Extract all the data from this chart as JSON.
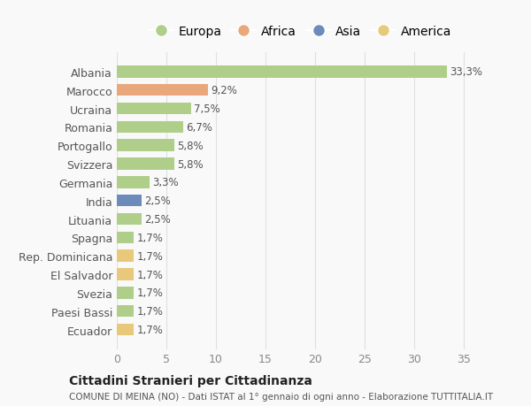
{
  "countries": [
    "Albania",
    "Marocco",
    "Ucraina",
    "Romania",
    "Portogallo",
    "Svizzera",
    "Germania",
    "India",
    "Lituania",
    "Spagna",
    "Rep. Dominicana",
    "El Salvador",
    "Svezia",
    "Paesi Bassi",
    "Ecuador"
  ],
  "values": [
    33.3,
    9.2,
    7.5,
    6.7,
    5.8,
    5.8,
    3.3,
    2.5,
    2.5,
    1.7,
    1.7,
    1.7,
    1.7,
    1.7,
    1.7
  ],
  "labels": [
    "33,3%",
    "9,2%",
    "7,5%",
    "6,7%",
    "5,8%",
    "5,8%",
    "3,3%",
    "2,5%",
    "2,5%",
    "1,7%",
    "1,7%",
    "1,7%",
    "1,7%",
    "1,7%",
    "1,7%"
  ],
  "continent_map": [
    "Europa",
    "Africa",
    "Europa",
    "Europa",
    "Europa",
    "Europa",
    "Europa",
    "Asia",
    "Europa",
    "Europa",
    "America",
    "America",
    "Europa",
    "Europa",
    "America"
  ],
  "continent_colors": {
    "Europa": "#aece8a",
    "Africa": "#e8a87c",
    "Asia": "#6b8cba",
    "America": "#e8c97c"
  },
  "legend_labels": [
    "Europa",
    "Africa",
    "Asia",
    "America"
  ],
  "legend_colors": [
    "#aece8a",
    "#e8a87c",
    "#6b8cba",
    "#e8c97c"
  ],
  "title1": "Cittadini Stranieri per Cittadinanza",
  "title2": "COMUNE DI MEINA (NO) - Dati ISTAT al 1° gennaio di ogni anno - Elaborazione TUTTITALIA.IT",
  "xlim": [
    0,
    37
  ],
  "xticks": [
    0,
    5,
    10,
    15,
    20,
    25,
    30,
    35
  ],
  "bg_color": "#f9f9f9",
  "grid_color": "#e0e0e0",
  "bar_height": 0.65,
  "label_fontsize": 8.5,
  "ytick_fontsize": 9,
  "xtick_fontsize": 9
}
